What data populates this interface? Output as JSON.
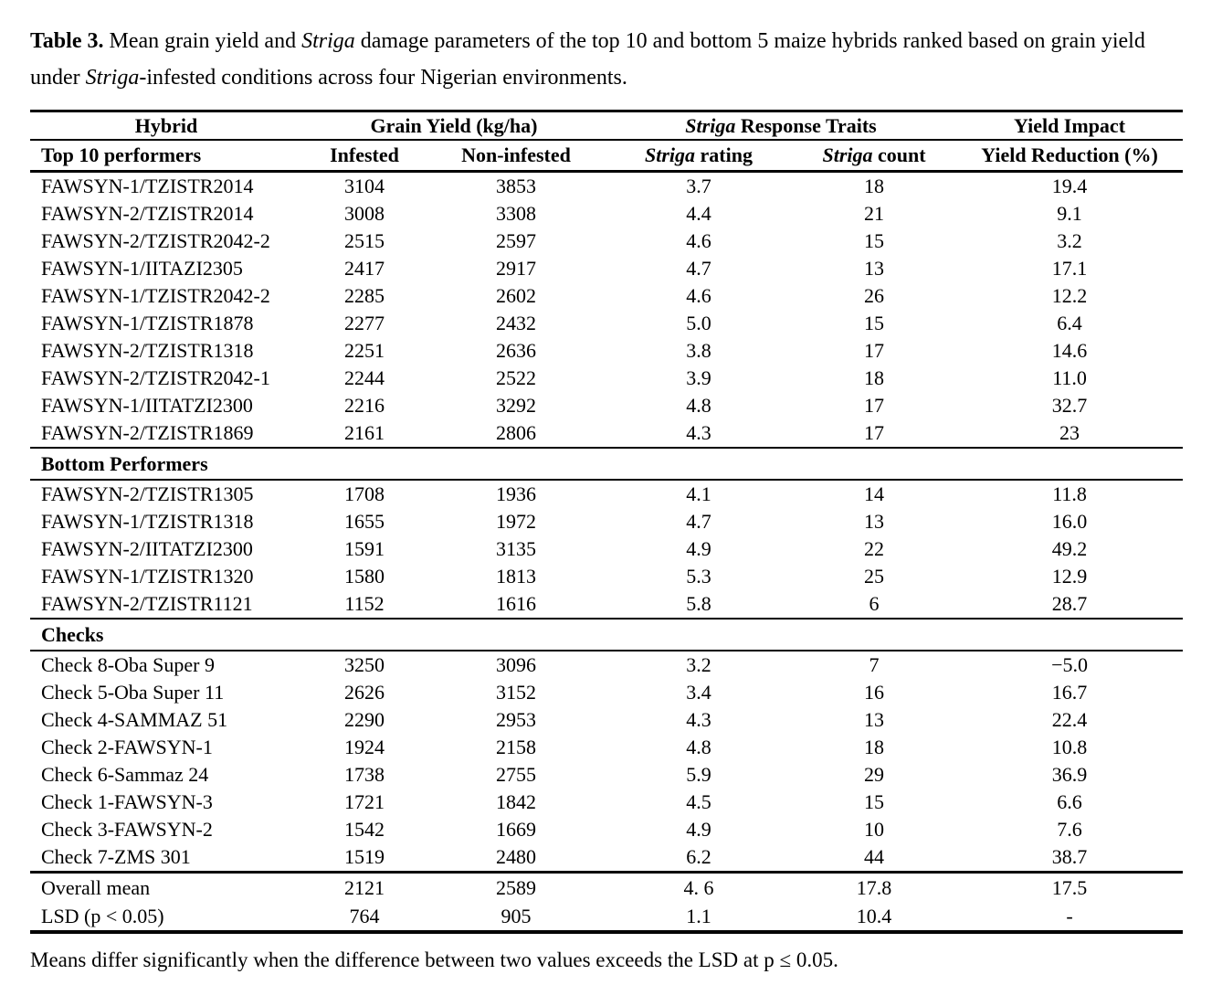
{
  "title": {
    "segments": [
      {
        "text": "Table 3.",
        "style": "bold"
      },
      {
        "text": " Mean grain yield and ",
        "style": "normal"
      },
      {
        "text": "Striga",
        "style": "italic"
      },
      {
        "text": " damage parameters of the top 10 and bottom 5 maize hybrids ranked based on grain yield under ",
        "style": "normal"
      },
      {
        "text": "Striga",
        "style": "italic"
      },
      {
        "text": "-infested conditions across four Nigerian environments.",
        "style": "normal"
      }
    ]
  },
  "table": {
    "head1": {
      "hybrid": "Hybrid",
      "grain_yield": "Grain Yield (kg/ha)",
      "striga_italic": "Striga",
      "striga_rest": " Response Traits",
      "yield_impact": "Yield Impact"
    },
    "head2": {
      "col0": "Top 10 performers",
      "col1": "Infested",
      "col2": "Non-infested",
      "col3_italic": "Striga",
      "col3_rest": " rating",
      "col4_italic": "Striga",
      "col4_rest": " count",
      "col5": "Yield Reduction (%)"
    },
    "sections": [
      {
        "label": null,
        "rows": [
          [
            "FAWSYN-1/TZISTR2014",
            "3104",
            "3853",
            "3.7",
            "18",
            "19.4"
          ],
          [
            "FAWSYN-2/TZISTR2014",
            "3008",
            "3308",
            "4.4",
            "21",
            "9.1"
          ],
          [
            "FAWSYN-2/TZISTR2042-2",
            "2515",
            "2597",
            "4.6",
            "15",
            "3.2"
          ],
          [
            "FAWSYN-1/IITAZI2305",
            "2417",
            "2917",
            "4.7",
            "13",
            "17.1"
          ],
          [
            "FAWSYN-1/TZISTR2042-2",
            "2285",
            "2602",
            "4.6",
            "26",
            "12.2"
          ],
          [
            "FAWSYN-1/TZISTR1878",
            "2277",
            "2432",
            "5.0",
            "15",
            "6.4"
          ],
          [
            "FAWSYN-2/TZISTR1318",
            "2251",
            "2636",
            "3.8",
            "17",
            "14.6"
          ],
          [
            "FAWSYN-2/TZISTR2042-1",
            "2244",
            "2522",
            "3.9",
            "18",
            "11.0"
          ],
          [
            "FAWSYN-1/IITATZI2300",
            "2216",
            "3292",
            "4.8",
            "17",
            "32.7"
          ],
          [
            "FAWSYN-2/TZISTR1869",
            "2161",
            "2806",
            "4.3",
            "17",
            "23"
          ]
        ]
      },
      {
        "label": "Bottom Performers",
        "rows": [
          [
            "FAWSYN-2/TZISTR1305",
            "1708",
            "1936",
            "4.1",
            "14",
            "11.8"
          ],
          [
            "FAWSYN-1/TZISTR1318",
            "1655",
            "1972",
            "4.7",
            "13",
            "16.0"
          ],
          [
            "FAWSYN-2/IITATZI2300",
            "1591",
            "3135",
            "4.9",
            "22",
            "49.2"
          ],
          [
            "FAWSYN-1/TZISTR1320",
            "1580",
            "1813",
            "5.3",
            "25",
            "12.9"
          ],
          [
            "FAWSYN-2/TZISTR1121",
            "1152",
            "1616",
            "5.8",
            "6",
            "28.7"
          ]
        ]
      },
      {
        "label": "Checks",
        "rows": [
          [
            "Check 8-Oba Super 9",
            "3250",
            "3096",
            "3.2",
            "7",
            "−5.0"
          ],
          [
            "Check 5-Oba Super 11",
            "2626",
            "3152",
            "3.4",
            "16",
            "16.7"
          ],
          [
            "Check 4-SAMMAZ 51",
            "2290",
            "2953",
            "4.3",
            "13",
            "22.4"
          ],
          [
            "Check 2-FAWSYN-1",
            "1924",
            "2158",
            "4.8",
            "18",
            "10.8"
          ],
          [
            "Check 6-Sammaz 24",
            "1738",
            "2755",
            "5.9",
            "29",
            "36.9"
          ],
          [
            "Check 1-FAWSYN-3",
            "1721",
            "1842",
            "4.5",
            "15",
            "6.6"
          ],
          [
            "Check 3-FAWSYN-2",
            "1542",
            "1669",
            "4.9",
            "10",
            "7.6"
          ],
          [
            "Check 7-ZMS 301",
            "1519",
            "2480",
            "6.2",
            "44",
            "38.7"
          ]
        ]
      }
    ],
    "summary_rows": [
      [
        "Overall mean",
        "2121",
        "2589",
        "4. 6",
        "17.8",
        "17.5"
      ],
      [
        "LSD (p < 0.05)",
        "764",
        "905",
        "1.1",
        "10.4",
        "-"
      ]
    ]
  },
  "footnote": "Means differ significantly when the difference between two values exceeds the LSD at p ≤ 0.05.",
  "colors": {
    "text": "#000000",
    "background": "#ffffff",
    "rule": "#000000"
  }
}
